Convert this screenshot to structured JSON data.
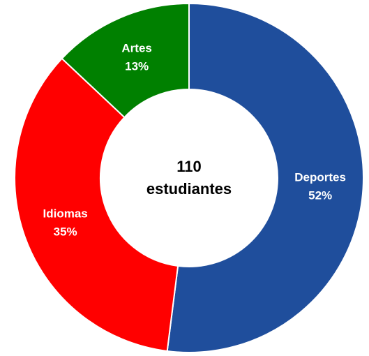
{
  "chart_data": {
    "type": "donut",
    "categories": [
      "Deportes",
      "Idiomas",
      "Artes"
    ],
    "values": [
      52,
      35,
      13
    ],
    "value_labels": [
      "52%",
      "35%",
      "13%"
    ],
    "colors": [
      "#1f4e9c",
      "#ff0000",
      "#008000"
    ],
    "total": 110,
    "total_label": "estudiantes"
  }
}
